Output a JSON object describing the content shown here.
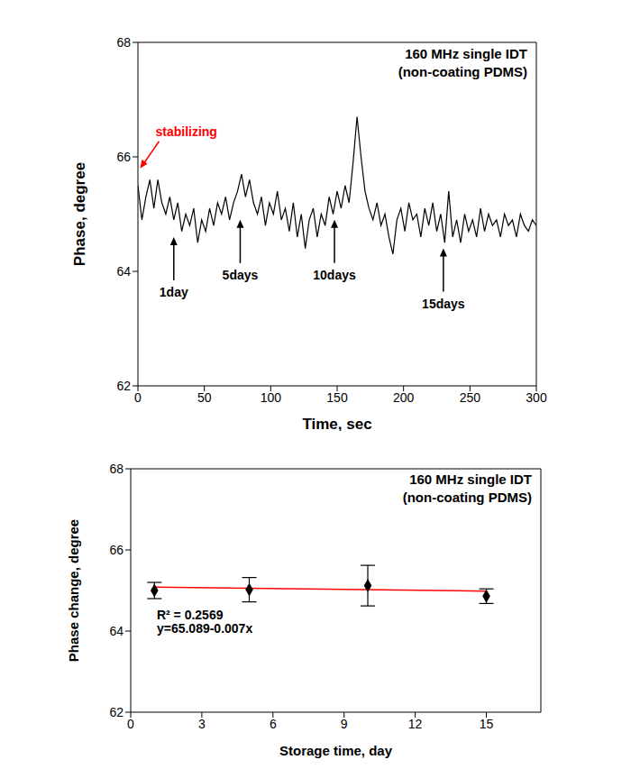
{
  "chart_data": [
    {
      "type": "line",
      "title": "160 MHz single IDT",
      "subtitle": "(non-coating PDMS)",
      "x_label": "Time, sec",
      "y_label": "Phase, degree",
      "x": [
        0,
        3,
        6,
        9,
        12,
        15,
        18,
        21,
        24,
        27,
        30,
        33,
        36,
        39,
        42,
        45,
        48,
        51,
        54,
        57,
        60,
        63,
        66,
        69,
        72,
        75,
        78,
        81,
        84,
        87,
        90,
        93,
        96,
        99,
        102,
        105,
        108,
        111,
        114,
        117,
        120,
        123,
        126,
        129,
        132,
        135,
        138,
        141,
        144,
        147,
        150,
        153,
        156,
        159,
        162,
        165,
        168,
        171,
        174,
        177,
        180,
        183,
        186,
        189,
        192,
        195,
        198,
        201,
        204,
        207,
        210,
        213,
        216,
        219,
        222,
        225,
        228,
        231,
        234,
        237,
        240,
        243,
        246,
        249,
        252,
        255,
        258,
        261,
        264,
        267,
        270,
        273,
        276,
        279,
        282,
        285,
        288,
        291,
        294,
        297,
        300
      ],
      "values": [
        65.5,
        64.9,
        65.3,
        65.6,
        65.1,
        65.6,
        65.2,
        65.0,
        65.3,
        64.9,
        65.2,
        64.7,
        65.0,
        64.8,
        65.1,
        64.5,
        64.9,
        64.7,
        65.1,
        64.8,
        65.2,
        65.0,
        65.3,
        64.9,
        65.2,
        65.4,
        65.7,
        65.3,
        65.6,
        65.2,
        65.0,
        65.3,
        64.8,
        65.2,
        65.0,
        65.4,
        64.9,
        65.1,
        64.7,
        65.2,
        64.6,
        65.0,
        64.4,
        64.9,
        65.1,
        64.6,
        65.0,
        64.8,
        65.3,
        65.0,
        65.4,
        65.1,
        65.5,
        65.2,
        65.9,
        66.7,
        66.0,
        65.4,
        65.1,
        64.9,
        65.2,
        64.8,
        65.0,
        64.6,
        64.3,
        64.9,
        65.1,
        64.7,
        65.2,
        64.9,
        65.0,
        64.6,
        65.1,
        64.8,
        65.2,
        64.7,
        65.0,
        64.5,
        65.4,
        64.6,
        64.9,
        64.5,
        65.0,
        64.7,
        64.9,
        64.6,
        65.1,
        64.7,
        65.0,
        64.8,
        64.9,
        64.6,
        65.0,
        64.8,
        64.9,
        64.6,
        65.0,
        64.8,
        64.7,
        64.9,
        64.8
      ],
      "color": "#000000",
      "marker": "none",
      "xlim": [
        0,
        300
      ],
      "xticks": [
        0,
        50,
        100,
        150,
        200,
        250,
        300
      ],
      "ylim": [
        62,
        68
      ],
      "yticks": [
        62,
        64,
        66,
        68
      ],
      "grid": false,
      "annotations": [
        {
          "text": "stabilizing",
          "x": 1,
          "y": 65.8,
          "color": "#ff0000"
        },
        {
          "text": "1day",
          "x": 27,
          "y": 64.6,
          "color": "#000000"
        },
        {
          "text": "5days",
          "x": 77,
          "y": 64.9,
          "color": "#000000"
        },
        {
          "text": "10days",
          "x": 148,
          "y": 64.9,
          "color": "#000000"
        },
        {
          "text": "15days",
          "x": 230,
          "y": 64.4,
          "color": "#000000"
        }
      ]
    },
    {
      "type": "scatter",
      "title": "160 MHz single IDT",
      "subtitle": "(non-coating PDMS)",
      "x_label": "Storage time, day",
      "y_label": "Phase change, degree",
      "x": [
        1,
        5,
        10,
        15
      ],
      "values": [
        65.0,
        65.02,
        65.12,
        64.86
      ],
      "errors": [
        0.2,
        0.3,
        0.5,
        0.18
      ],
      "color": "#000000",
      "marker": "diamond",
      "fit": {
        "intercept": 65.089,
        "slope": -0.007,
        "x": [
          1,
          15
        ],
        "color": "#ff0000"
      },
      "xlim": [
        0,
        17.3
      ],
      "xticks": [
        0,
        3,
        6,
        9,
        12,
        15
      ],
      "ylim": [
        62,
        68
      ],
      "yticks": [
        62,
        64,
        66,
        68
      ],
      "grid": false,
      "annotations": [
        {
          "text": "R² =  0.2569",
          "x": 1.1,
          "y": 64.3,
          "color": "#000000"
        },
        {
          "text": "y=65.089-0.007x",
          "x": 1.1,
          "y": 63.95,
          "color": "#000000"
        }
      ]
    }
  ]
}
